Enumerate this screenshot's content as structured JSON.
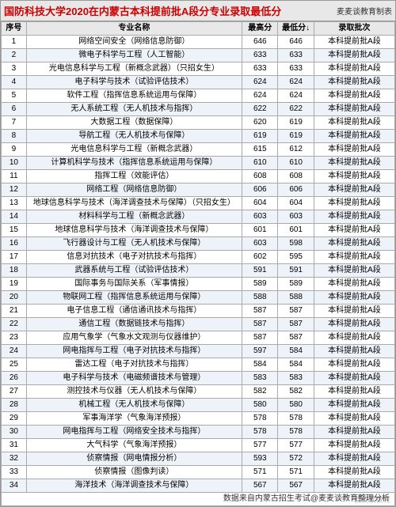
{
  "title": "国防科技大学2020在内蒙古本科提前批A段分专业录取最低分",
  "subtitle": "麦麦谈教育制表",
  "footer": "数据来自内蒙古招生考试@麦麦谈教育整理分析",
  "watermark": "麦麦谈教育",
  "columns": [
    "序号",
    "专业名称",
    "最高分",
    "最低分↓",
    "录取批次"
  ],
  "rows": [
    {
      "seq": "1",
      "name": "网络空间安全（网络信息防御）",
      "max": "646",
      "min": "646",
      "batch": "本科提前批A段"
    },
    {
      "seq": "2",
      "name": "微电子科学与工程（人工智能）",
      "max": "633",
      "min": "633",
      "batch": "本科提前批A段"
    },
    {
      "seq": "3",
      "name": "光电信息科学与工程（新概念武器）（只招女生）",
      "max": "633",
      "min": "633",
      "batch": "本科提前批A段"
    },
    {
      "seq": "4",
      "name": "电子科学与技术（试验评估技术）",
      "max": "624",
      "min": "624",
      "batch": "本科提前批A段"
    },
    {
      "seq": "5",
      "name": "软件工程（指挥信息系统运用与保障）",
      "max": "624",
      "min": "624",
      "batch": "本科提前批A段"
    },
    {
      "seq": "6",
      "name": "无人系统工程（无人机技术与指挥）",
      "max": "622",
      "min": "622",
      "batch": "本科提前批A段"
    },
    {
      "seq": "7",
      "name": "大数据工程（数据保障）",
      "max": "620",
      "min": "619",
      "batch": "本科提前批A段"
    },
    {
      "seq": "8",
      "name": "导航工程（无人机技术与保障）",
      "max": "619",
      "min": "619",
      "batch": "本科提前批A段"
    },
    {
      "seq": "9",
      "name": "光电信息科学与工程（新概念武器）",
      "max": "615",
      "min": "612",
      "batch": "本科提前批A段"
    },
    {
      "seq": "10",
      "name": "计算机科学与技术（指挥信息系统运用与保障）",
      "max": "610",
      "min": "610",
      "batch": "本科提前批A段"
    },
    {
      "seq": "11",
      "name": "指挥工程（效能评估）",
      "max": "608",
      "min": "608",
      "batch": "本科提前批A段"
    },
    {
      "seq": "12",
      "name": "网络工程（网络信息防御）",
      "max": "606",
      "min": "606",
      "batch": "本科提前批A段"
    },
    {
      "seq": "13",
      "name": "地球信息科学与技术（海洋调查技术与保障）（只招女生）",
      "max": "604",
      "min": "604",
      "batch": "本科提前批A段"
    },
    {
      "seq": "14",
      "name": "材料科学与工程（新概念武器）",
      "max": "603",
      "min": "603",
      "batch": "本科提前批A段"
    },
    {
      "seq": "15",
      "name": "地球信息科学与技术（海洋调查技术与保障）",
      "max": "601",
      "min": "601",
      "batch": "本科提前批A段"
    },
    {
      "seq": "16",
      "name": "飞行器设计与工程（无人机技术与保障）",
      "max": "603",
      "min": "598",
      "batch": "本科提前批A段"
    },
    {
      "seq": "17",
      "name": "信息对抗技术（电子对抗技术与指挥）",
      "max": "602",
      "min": "595",
      "batch": "本科提前批A段"
    },
    {
      "seq": "18",
      "name": "武器系统与工程（试验评估技术）",
      "max": "591",
      "min": "591",
      "batch": "本科提前批A段"
    },
    {
      "seq": "19",
      "name": "国际事务与国际关系（军事情报）",
      "max": "589",
      "min": "589",
      "batch": "本科提前批A段"
    },
    {
      "seq": "20",
      "name": "物联网工程（指挥信息系统运用与保障）",
      "max": "588",
      "min": "588",
      "batch": "本科提前批A段"
    },
    {
      "seq": "21",
      "name": "电子信息工程（通信通讯技术与指挥）",
      "max": "587",
      "min": "587",
      "batch": "本科提前批A段"
    },
    {
      "seq": "22",
      "name": "通信工程（数据链技术与指挥）",
      "max": "587",
      "min": "587",
      "batch": "本科提前批A段"
    },
    {
      "seq": "23",
      "name": "应用气象学（气象水文观测与仪器维护）",
      "max": "587",
      "min": "587",
      "batch": "本科提前批A段"
    },
    {
      "seq": "24",
      "name": "网电指挥与工程（电子对抗技术与指挥）",
      "max": "597",
      "min": "584",
      "batch": "本科提前批A段"
    },
    {
      "seq": "25",
      "name": "雷达工程（电子对抗技术与指挥）",
      "max": "584",
      "min": "584",
      "batch": "本科提前批A段"
    },
    {
      "seq": "26",
      "name": "电子科学与技术（电磁频谱技术与管理）",
      "max": "583",
      "min": "583",
      "batch": "本科提前批A段"
    },
    {
      "seq": "27",
      "name": "测控技术与仪器（无人机技术与保障）",
      "max": "582",
      "min": "582",
      "batch": "本科提前批A段"
    },
    {
      "seq": "28",
      "name": "机械工程（无人机技术与保障）",
      "max": "580",
      "min": "580",
      "batch": "本科提前批A段"
    },
    {
      "seq": "29",
      "name": "军事海洋学（气象海洋预报）",
      "max": "578",
      "min": "578",
      "batch": "本科提前批A段"
    },
    {
      "seq": "30",
      "name": "网电指挥与工程（网络安全技术与指挥）",
      "max": "578",
      "min": "578",
      "batch": "本科提前批A段"
    },
    {
      "seq": "31",
      "name": "大气科学（气象海洋预报）",
      "max": "577",
      "min": "577",
      "batch": "本科提前批A段"
    },
    {
      "seq": "32",
      "name": "侦察情报（网电情报分析）",
      "max": "593",
      "min": "572",
      "batch": "本科提前批A段"
    },
    {
      "seq": "33",
      "name": "侦察情报（图像判读）",
      "max": "571",
      "min": "571",
      "batch": "本科提前批A段"
    },
    {
      "seq": "34",
      "name": "海洋技术（海洋调查技术与保障）",
      "max": "567",
      "min": "567",
      "batch": "本科提前批A段"
    }
  ]
}
